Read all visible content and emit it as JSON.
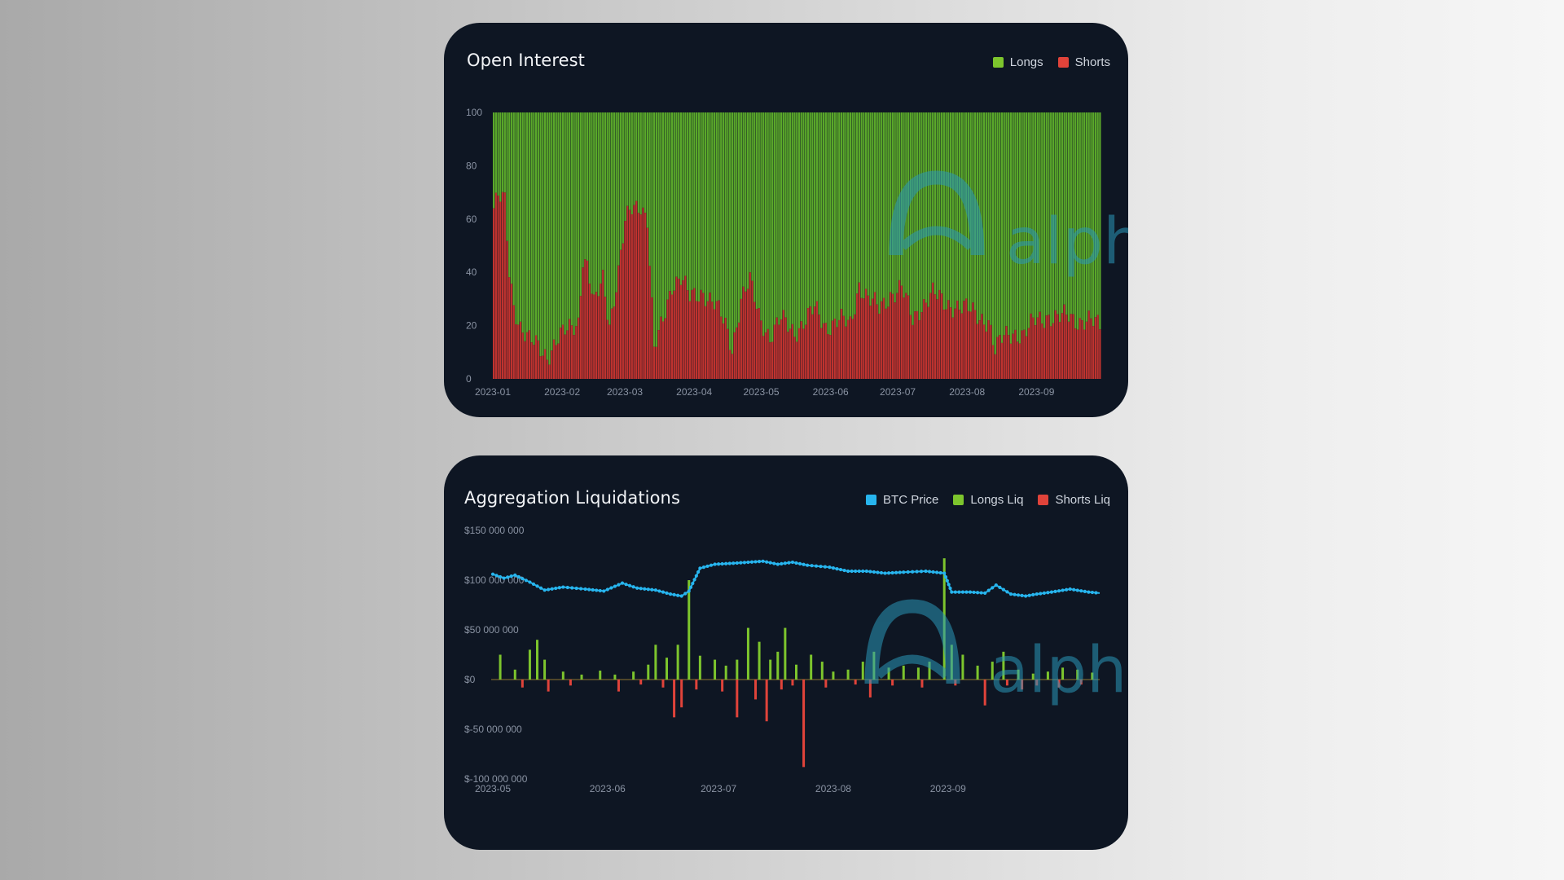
{
  "colors": {
    "longs": "#5aa82a",
    "shorts": "#c0332f",
    "btc_price": "#27b5ee",
    "longs_liq": "#7dc52d",
    "shorts_liq": "#e0433a",
    "watermark": "#2a98b8"
  },
  "watermark_text": "alph",
  "chart_data": [
    {
      "type": "bar",
      "stacked": true,
      "title": "Open Interest",
      "legend": {
        "placement": "top-right"
      },
      "series": [
        {
          "name": "Longs",
          "color": "#5aa82a"
        },
        {
          "name": "Shorts",
          "color": "#c0332f"
        }
      ],
      "ylim": [
        0,
        100
      ],
      "yticks": [
        0,
        20,
        40,
        60,
        80,
        100
      ],
      "x_tick_labels": [
        "2023-01",
        "2023-02",
        "2023-03",
        "2023-04",
        "2023-05",
        "2023-06",
        "2023-07",
        "2023-08",
        "2023-09"
      ],
      "x_range": [
        "2023-01-01",
        "2023-09-30"
      ],
      "shorts_share": [
        {
          "date": "2023-01-01",
          "value": 64
        },
        {
          "date": "2023-01-03",
          "value": 68
        },
        {
          "date": "2023-01-06",
          "value": 66
        },
        {
          "date": "2023-01-08",
          "value": 40
        },
        {
          "date": "2023-01-10",
          "value": 28
        },
        {
          "date": "2023-01-13",
          "value": 20
        },
        {
          "date": "2023-01-17",
          "value": 14
        },
        {
          "date": "2023-01-21",
          "value": 12
        },
        {
          "date": "2023-01-25",
          "value": 9
        },
        {
          "date": "2023-01-29",
          "value": 14
        },
        {
          "date": "2023-02-03",
          "value": 18
        },
        {
          "date": "2023-02-08",
          "value": 22
        },
        {
          "date": "2023-02-10",
          "value": 46
        },
        {
          "date": "2023-02-12",
          "value": 42
        },
        {
          "date": "2023-02-15",
          "value": 27
        },
        {
          "date": "2023-02-19",
          "value": 38
        },
        {
          "date": "2023-02-22",
          "value": 21
        },
        {
          "date": "2023-02-26",
          "value": 40
        },
        {
          "date": "2023-03-01",
          "value": 58
        },
        {
          "date": "2023-03-04",
          "value": 64
        },
        {
          "date": "2023-03-08",
          "value": 66
        },
        {
          "date": "2023-03-11",
          "value": 60
        },
        {
          "date": "2023-03-14",
          "value": 10
        },
        {
          "date": "2023-03-18",
          "value": 22
        },
        {
          "date": "2023-03-22",
          "value": 36
        },
        {
          "date": "2023-03-26",
          "value": 38
        },
        {
          "date": "2023-03-30",
          "value": 30
        },
        {
          "date": "2023-04-05",
          "value": 33
        },
        {
          "date": "2023-04-10",
          "value": 28
        },
        {
          "date": "2023-04-15",
          "value": 20
        },
        {
          "date": "2023-04-18",
          "value": 12
        },
        {
          "date": "2023-04-22",
          "value": 30
        },
        {
          "date": "2023-04-26",
          "value": 36
        },
        {
          "date": "2023-04-30",
          "value": 24
        },
        {
          "date": "2023-05-05",
          "value": 16
        },
        {
          "date": "2023-05-10",
          "value": 22
        },
        {
          "date": "2023-05-16",
          "value": 18
        },
        {
          "date": "2023-05-21",
          "value": 22
        },
        {
          "date": "2023-05-25",
          "value": 26
        },
        {
          "date": "2023-05-30",
          "value": 20
        },
        {
          "date": "2023-06-05",
          "value": 22
        },
        {
          "date": "2023-06-10",
          "value": 20
        },
        {
          "date": "2023-06-14",
          "value": 36
        },
        {
          "date": "2023-06-18",
          "value": 30
        },
        {
          "date": "2023-06-23",
          "value": 26
        },
        {
          "date": "2023-06-28",
          "value": 32
        },
        {
          "date": "2023-07-03",
          "value": 34
        },
        {
          "date": "2023-07-08",
          "value": 22
        },
        {
          "date": "2023-07-12",
          "value": 28
        },
        {
          "date": "2023-07-17",
          "value": 32
        },
        {
          "date": "2023-07-22",
          "value": 28
        },
        {
          "date": "2023-07-27",
          "value": 28
        },
        {
          "date": "2023-08-01",
          "value": 26
        },
        {
          "date": "2023-08-06",
          "value": 24
        },
        {
          "date": "2023-08-11",
          "value": 22
        },
        {
          "date": "2023-08-14",
          "value": 10
        },
        {
          "date": "2023-08-18",
          "value": 16
        },
        {
          "date": "2023-08-22",
          "value": 18
        },
        {
          "date": "2023-08-27",
          "value": 16
        },
        {
          "date": "2023-09-01",
          "value": 22
        },
        {
          "date": "2023-09-06",
          "value": 24
        },
        {
          "date": "2023-09-11",
          "value": 22
        },
        {
          "date": "2023-09-16",
          "value": 24
        },
        {
          "date": "2023-09-21",
          "value": 22
        },
        {
          "date": "2023-09-26",
          "value": 21
        },
        {
          "date": "2023-09-30",
          "value": 20
        }
      ],
      "grid": false
    },
    {
      "type": "bar",
      "title": "Aggregation Liquidations",
      "legend": {
        "placement": "top-right"
      },
      "series": [
        {
          "name": "BTC Price",
          "type": "line",
          "color": "#27b5ee",
          "points": [
            {
              "date": "2023-05-01",
              "value": 106000000
            },
            {
              "date": "2023-05-04",
              "value": 102000000
            },
            {
              "date": "2023-05-07",
              "value": 105000000
            },
            {
              "date": "2023-05-11",
              "value": 98000000
            },
            {
              "date": "2023-05-15",
              "value": 90000000
            },
            {
              "date": "2023-05-20",
              "value": 93000000
            },
            {
              "date": "2023-05-26",
              "value": 91000000
            },
            {
              "date": "2023-05-31",
              "value": 89000000
            },
            {
              "date": "2023-06-05",
              "value": 97000000
            },
            {
              "date": "2023-06-09",
              "value": 92000000
            },
            {
              "date": "2023-06-14",
              "value": 90000000
            },
            {
              "date": "2023-06-18",
              "value": 86000000
            },
            {
              "date": "2023-06-21",
              "value": 84000000
            },
            {
              "date": "2023-06-23",
              "value": 89000000
            },
            {
              "date": "2023-06-26",
              "value": 112000000
            },
            {
              "date": "2023-06-30",
              "value": 116000000
            },
            {
              "date": "2023-07-05",
              "value": 117000000
            },
            {
              "date": "2023-07-09",
              "value": 118000000
            },
            {
              "date": "2023-07-13",
              "value": 119000000
            },
            {
              "date": "2023-07-17",
              "value": 116000000
            },
            {
              "date": "2023-07-21",
              "value": 118000000
            },
            {
              "date": "2023-07-25",
              "value": 115000000
            },
            {
              "date": "2023-07-31",
              "value": 113000000
            },
            {
              "date": "2023-08-05",
              "value": 109000000
            },
            {
              "date": "2023-08-10",
              "value": 109000000
            },
            {
              "date": "2023-08-15",
              "value": 107000000
            },
            {
              "date": "2023-08-20",
              "value": 108000000
            },
            {
              "date": "2023-08-26",
              "value": 109000000
            },
            {
              "date": "2023-08-31",
              "value": 107000000
            },
            {
              "date": "2023-09-02",
              "value": 88000000
            },
            {
              "date": "2023-09-07",
              "value": 88000000
            },
            {
              "date": "2023-09-11",
              "value": 87000000
            },
            {
              "date": "2023-09-14",
              "value": 95000000
            },
            {
              "date": "2023-09-18",
              "value": 86000000
            },
            {
              "date": "2023-09-22",
              "value": 84000000
            },
            {
              "date": "2023-09-25",
              "value": 86000000
            },
            {
              "date": "2023-09-29",
              "value": 88000000
            },
            {
              "date": "2023-10-04",
              "value": 91000000
            },
            {
              "date": "2023-10-09",
              "value": 88000000
            },
            {
              "date": "2023-10-12",
              "value": 87000000
            }
          ]
        },
        {
          "name": "Longs Liq",
          "type": "bar",
          "color": "#7dc52d",
          "points": [
            {
              "date": "2023-05-03",
              "value": 25000000
            },
            {
              "date": "2023-05-07",
              "value": 10000000
            },
            {
              "date": "2023-05-11",
              "value": 30000000
            },
            {
              "date": "2023-05-13",
              "value": 40000000
            },
            {
              "date": "2023-05-15",
              "value": 20000000
            },
            {
              "date": "2023-05-20",
              "value": 8000000
            },
            {
              "date": "2023-05-25",
              "value": 5000000
            },
            {
              "date": "2023-05-30",
              "value": 9000000
            },
            {
              "date": "2023-06-03",
              "value": 5000000
            },
            {
              "date": "2023-06-08",
              "value": 8000000
            },
            {
              "date": "2023-06-12",
              "value": 15000000
            },
            {
              "date": "2023-06-14",
              "value": 35000000
            },
            {
              "date": "2023-06-17",
              "value": 22000000
            },
            {
              "date": "2023-06-20",
              "value": 35000000
            },
            {
              "date": "2023-06-23",
              "value": 100000000
            },
            {
              "date": "2023-06-26",
              "value": 24000000
            },
            {
              "date": "2023-06-30",
              "value": 20000000
            },
            {
              "date": "2023-07-03",
              "value": 14000000
            },
            {
              "date": "2023-07-06",
              "value": 20000000
            },
            {
              "date": "2023-07-09",
              "value": 52000000
            },
            {
              "date": "2023-07-12",
              "value": 38000000
            },
            {
              "date": "2023-07-15",
              "value": 20000000
            },
            {
              "date": "2023-07-17",
              "value": 28000000
            },
            {
              "date": "2023-07-19",
              "value": 52000000
            },
            {
              "date": "2023-07-22",
              "value": 15000000
            },
            {
              "date": "2023-07-26",
              "value": 25000000
            },
            {
              "date": "2023-07-29",
              "value": 18000000
            },
            {
              "date": "2023-08-01",
              "value": 8000000
            },
            {
              "date": "2023-08-05",
              "value": 10000000
            },
            {
              "date": "2023-08-09",
              "value": 18000000
            },
            {
              "date": "2023-08-12",
              "value": 28000000
            },
            {
              "date": "2023-08-16",
              "value": 12000000
            },
            {
              "date": "2023-08-20",
              "value": 14000000
            },
            {
              "date": "2023-08-24",
              "value": 12000000
            },
            {
              "date": "2023-08-27",
              "value": 18000000
            },
            {
              "date": "2023-08-31",
              "value": 122000000
            },
            {
              "date": "2023-09-02",
              "value": 35000000
            },
            {
              "date": "2023-09-05",
              "value": 25000000
            },
            {
              "date": "2023-09-09",
              "value": 14000000
            },
            {
              "date": "2023-09-13",
              "value": 18000000
            },
            {
              "date": "2023-09-16",
              "value": 28000000
            },
            {
              "date": "2023-09-20",
              "value": 10000000
            },
            {
              "date": "2023-09-24",
              "value": 6000000
            },
            {
              "date": "2023-09-28",
              "value": 8000000
            },
            {
              "date": "2023-10-02",
              "value": 12000000
            },
            {
              "date": "2023-10-06",
              "value": 10000000
            },
            {
              "date": "2023-10-10",
              "value": 7000000
            }
          ]
        },
        {
          "name": "Shorts Liq",
          "type": "bar",
          "color": "#e0433a",
          "points": [
            {
              "date": "2023-05-09",
              "value": -8000000
            },
            {
              "date": "2023-05-16",
              "value": -12000000
            },
            {
              "date": "2023-05-22",
              "value": -6000000
            },
            {
              "date": "2023-06-04",
              "value": -12000000
            },
            {
              "date": "2023-06-10",
              "value": -5000000
            },
            {
              "date": "2023-06-16",
              "value": -8000000
            },
            {
              "date": "2023-06-19",
              "value": -38000000
            },
            {
              "date": "2023-06-21",
              "value": -28000000
            },
            {
              "date": "2023-06-25",
              "value": -10000000
            },
            {
              "date": "2023-07-02",
              "value": -12000000
            },
            {
              "date": "2023-07-06",
              "value": -38000000
            },
            {
              "date": "2023-07-11",
              "value": -20000000
            },
            {
              "date": "2023-07-14",
              "value": -42000000
            },
            {
              "date": "2023-07-18",
              "value": -10000000
            },
            {
              "date": "2023-07-21",
              "value": -6000000
            },
            {
              "date": "2023-07-24",
              "value": -88000000
            },
            {
              "date": "2023-07-30",
              "value": -8000000
            },
            {
              "date": "2023-08-07",
              "value": -5000000
            },
            {
              "date": "2023-08-11",
              "value": -18000000
            },
            {
              "date": "2023-08-17",
              "value": -6000000
            },
            {
              "date": "2023-08-25",
              "value": -8000000
            },
            {
              "date": "2023-09-03",
              "value": -6000000
            },
            {
              "date": "2023-09-11",
              "value": -26000000
            },
            {
              "date": "2023-09-17",
              "value": -6000000
            },
            {
              "date": "2023-09-21",
              "value": -10000000
            },
            {
              "date": "2023-09-25",
              "value": -6000000
            },
            {
              "date": "2023-10-01",
              "value": -8000000
            },
            {
              "date": "2023-10-07",
              "value": -5000000
            }
          ]
        }
      ],
      "ylim": [
        -100000000,
        150000000
      ],
      "ytick_labels": [
        "$150 000 000",
        "$100 000 000",
        "$50 000 000",
        "$0",
        "$-50 000 000",
        "$-100 000 000"
      ],
      "yticks": [
        150000000,
        100000000,
        50000000,
        0,
        -50000000,
        -100000000
      ],
      "x_tick_labels": [
        "2023-05",
        "2023-06",
        "2023-07",
        "2023-08",
        "2023-09"
      ],
      "x_range": [
        "2023-05-01",
        "2023-10-12"
      ],
      "grid": false
    }
  ]
}
